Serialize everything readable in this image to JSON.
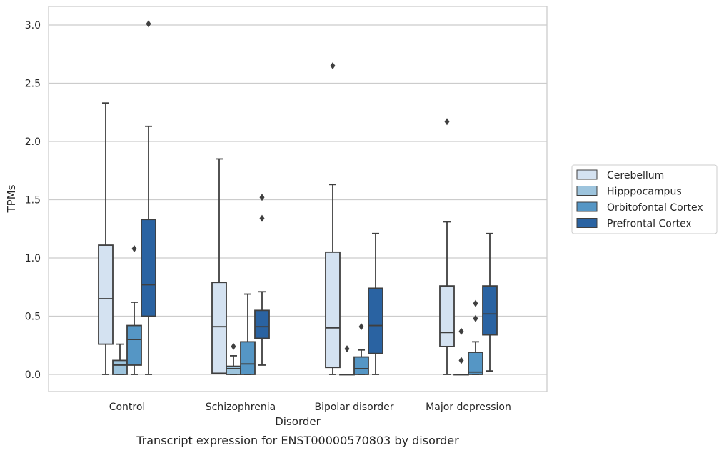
{
  "caption": "Transcript expression for ENST00000570803 by disorder",
  "chart_data": {
    "type": "box",
    "xlabel": "Disorder",
    "ylabel": "TPMs",
    "ylim": [
      -0.15,
      3.15
    ],
    "yticks": [
      "0.0",
      "0.5",
      "1.0",
      "1.5",
      "2.0",
      "2.5",
      "3.0"
    ],
    "categories": [
      "Control",
      "Schizophrenia",
      "Bipolar disorder",
      "Major depression"
    ],
    "grid": "horizontal",
    "legend_position": "right",
    "series": [
      {
        "name": "Cerebellum",
        "color": "#d4e2f1",
        "boxes": [
          {
            "whisker_low": 0.0,
            "q1": 0.26,
            "median": 0.65,
            "q3": 1.11,
            "whisker_high": 2.33,
            "outliers": []
          },
          {
            "whisker_low": 0.01,
            "q1": 0.01,
            "median": 0.41,
            "q3": 0.79,
            "whisker_high": 1.85,
            "outliers": []
          },
          {
            "whisker_low": 0.0,
            "q1": 0.06,
            "median": 0.4,
            "q3": 1.05,
            "whisker_high": 1.63,
            "outliers": [
              2.65
            ]
          },
          {
            "whisker_low": 0.0,
            "q1": 0.24,
            "median": 0.36,
            "q3": 0.76,
            "whisker_high": 1.31,
            "outliers": [
              2.17
            ]
          }
        ]
      },
      {
        "name": "Hipppocampus",
        "color": "#9dc4dd",
        "boxes": [
          {
            "whisker_low": 0.0,
            "q1": 0.0,
            "median": 0.08,
            "q3": 0.12,
            "whisker_high": 0.26,
            "outliers": []
          },
          {
            "whisker_low": 0.0,
            "q1": 0.0,
            "median": 0.05,
            "q3": 0.07,
            "whisker_high": 0.16,
            "outliers": [
              0.24
            ]
          },
          {
            "whisker_low": 0.0,
            "q1": 0.0,
            "median": 0.0,
            "q3": 0.0,
            "whisker_high": 0.0,
            "outliers": [
              0.22
            ]
          },
          {
            "whisker_low": 0.0,
            "q1": 0.0,
            "median": 0.0,
            "q3": 0.0,
            "whisker_high": 0.0,
            "outliers": [
              0.37,
              0.12
            ]
          }
        ]
      },
      {
        "name": "Orbitofontal Cortex",
        "color": "#5596c5",
        "boxes": [
          {
            "whisker_low": 0.0,
            "q1": 0.08,
            "median": 0.3,
            "q3": 0.42,
            "whisker_high": 0.62,
            "outliers": [
              1.08
            ]
          },
          {
            "whisker_low": 0.0,
            "q1": 0.0,
            "median": 0.09,
            "q3": 0.28,
            "whisker_high": 0.69,
            "outliers": []
          },
          {
            "whisker_low": 0.0,
            "q1": 0.0,
            "median": 0.05,
            "q3": 0.15,
            "whisker_high": 0.21,
            "outliers": [
              0.41
            ]
          },
          {
            "whisker_low": 0.0,
            "q1": 0.0,
            "median": 0.02,
            "q3": 0.19,
            "whisker_high": 0.28,
            "outliers": [
              0.61,
              0.48
            ]
          }
        ]
      },
      {
        "name": "Prefrontal Cortex",
        "color": "#2a63a2",
        "boxes": [
          {
            "whisker_low": 0.0,
            "q1": 0.5,
            "median": 0.77,
            "q3": 1.33,
            "whisker_high": 2.13,
            "outliers": [
              3.01
            ]
          },
          {
            "whisker_low": 0.08,
            "q1": 0.31,
            "median": 0.41,
            "q3": 0.55,
            "whisker_high": 0.71,
            "outliers": [
              1.52,
              1.34
            ]
          },
          {
            "whisker_low": 0.0,
            "q1": 0.18,
            "median": 0.42,
            "q3": 0.74,
            "whisker_high": 1.21,
            "outliers": []
          },
          {
            "whisker_low": 0.03,
            "q1": 0.34,
            "median": 0.52,
            "q3": 0.76,
            "whisker_high": 1.21,
            "outliers": []
          }
        ]
      }
    ]
  }
}
